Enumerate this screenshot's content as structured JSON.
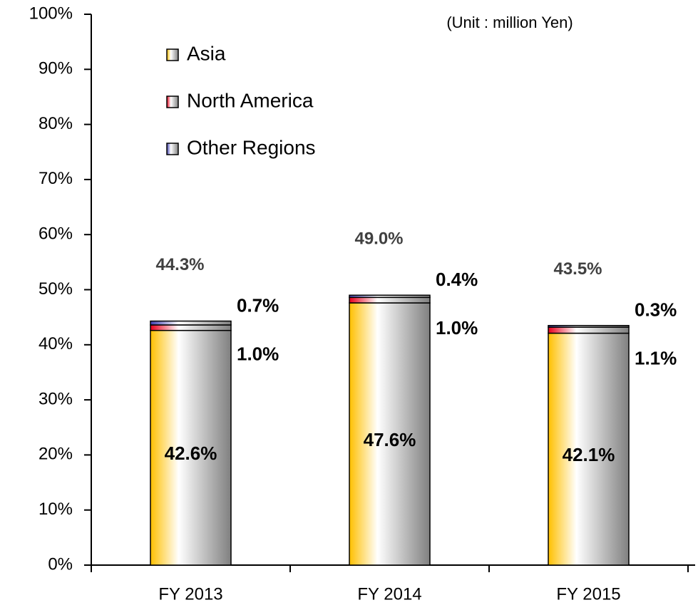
{
  "chart_data": {
    "type": "stacked_bar",
    "annotation": "(Unit : million Yen)",
    "categories": [
      "FY 2013",
      "FY 2014",
      "FY 2015"
    ],
    "series": [
      {
        "name": "Asia",
        "color": "#ffc000",
        "values": [
          42.6,
          47.6,
          42.1
        ],
        "value_labels": [
          "42.6%",
          "47.6%",
          "42.1%"
        ]
      },
      {
        "name": "North America",
        "color": "#e8001c",
        "values": [
          1.0,
          1.0,
          1.1
        ],
        "value_labels": [
          "1.0%",
          "1.0%",
          "1.1%"
        ]
      },
      {
        "name": "Other Regions",
        "color": "#4040b0",
        "values": [
          0.7,
          0.4,
          0.3
        ],
        "value_labels": [
          "0.7%",
          "0.4%",
          "0.3%"
        ]
      }
    ],
    "total_labels": [
      "44.3%",
      "49.0%",
      "43.5%"
    ],
    "ylim": [
      0,
      100
    ],
    "yticks": [
      {
        "value": 0,
        "label": "0%"
      },
      {
        "value": 10,
        "label": "10%"
      },
      {
        "value": 20,
        "label": "20%"
      },
      {
        "value": 30,
        "label": "30%"
      },
      {
        "value": 40,
        "label": "40%"
      },
      {
        "value": 50,
        "label": "50%"
      },
      {
        "value": 60,
        "label": "60%"
      },
      {
        "value": 70,
        "label": "70%"
      },
      {
        "value": 80,
        "label": "80%"
      },
      {
        "value": 90,
        "label": "90%"
      },
      {
        "value": 100,
        "label": "100%"
      }
    ],
    "legend": "upper left"
  }
}
